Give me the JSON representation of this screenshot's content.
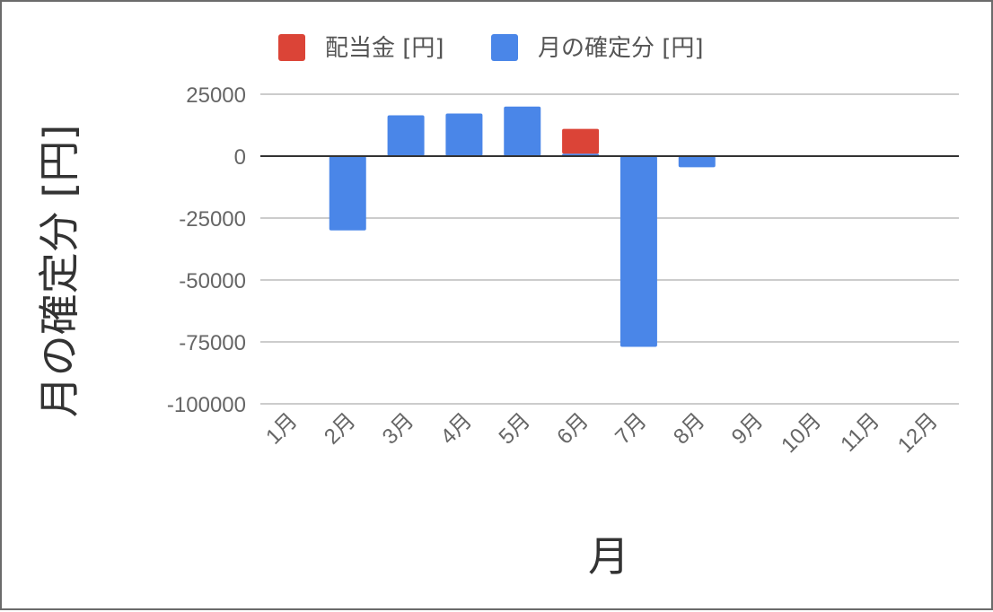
{
  "chart_data": {
    "type": "bar",
    "stacked": true,
    "categories": [
      "1月",
      "2月",
      "3月",
      "4月",
      "5月",
      "6月",
      "7月",
      "8月",
      "9月",
      "10月",
      "11月",
      "12月"
    ],
    "series": [
      {
        "name": "月の確定分 [円]",
        "color": "#4a86e8",
        "values": [
          0,
          -30000,
          16500,
          17200,
          20000,
          1000,
          -77000,
          -4500,
          0,
          0,
          0,
          0
        ]
      },
      {
        "name": "配当金 [円]",
        "color": "#db4437",
        "values": [
          0,
          0,
          0,
          0,
          0,
          10000,
          0,
          0,
          0,
          0,
          0,
          0
        ]
      }
    ],
    "legend_order": [
      "配当金 [円]",
      "月の確定分 [円]"
    ],
    "ylim": [
      -100000,
      25000
    ],
    "yticks": [
      25000,
      0,
      -25000,
      -50000,
      -75000,
      -100000
    ],
    "xlabel": "月",
    "ylabel": "月の確定分 [円]",
    "grid": true,
    "legend_position": "top"
  }
}
